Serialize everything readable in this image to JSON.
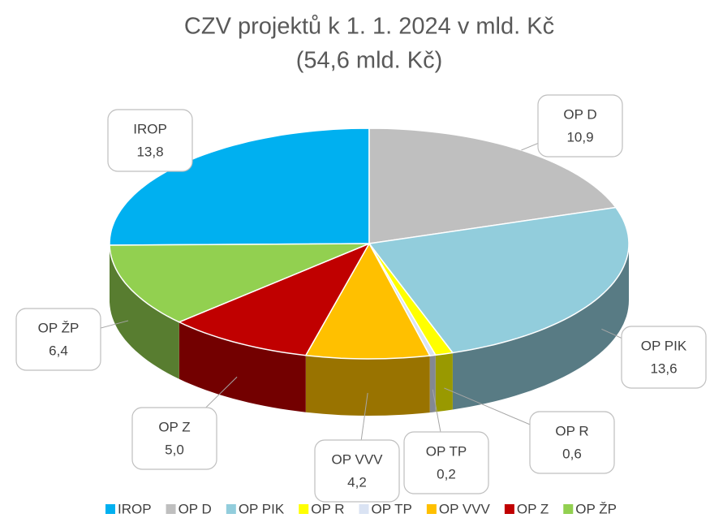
{
  "chart_data": {
    "type": "pie",
    "title": "CZV projektů k 1. 1. 2024 v mld. Kč",
    "subtitle": "(54,6 mld. Kč)",
    "categories": [
      "IROP",
      "OP D",
      "OP PIK",
      "OP R",
      "OP TP",
      "OP VVV",
      "OP Z",
      "OP ŽP"
    ],
    "values": [
      13.8,
      10.9,
      13.6,
      0.6,
      0.2,
      4.2,
      5.0,
      6.4
    ],
    "value_labels": [
      "13,8",
      "10,9",
      "13,6",
      "0,6",
      "0,2",
      "4,2",
      "5,0",
      "6,4"
    ],
    "colors": [
      "#00b0f0",
      "#bfbfbf",
      "#92cddc",
      "#ffff00",
      "#dae3f3",
      "#ffc000",
      "#c00000",
      "#92d050"
    ],
    "legend": "bottom"
  }
}
